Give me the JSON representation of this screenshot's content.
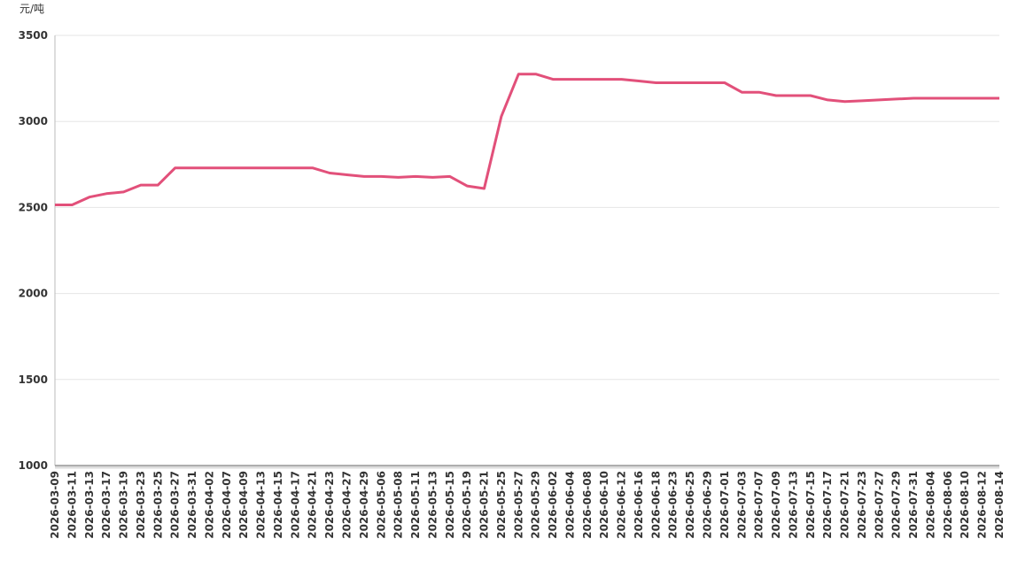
{
  "chart_data": {
    "type": "line",
    "y_label": "元/吨",
    "categories": [
      "2026-03-09",
      "2026-03-11",
      "2026-03-13",
      "2026-03-17",
      "2026-03-19",
      "2026-03-23",
      "2026-03-25",
      "2026-03-27",
      "2026-03-31",
      "2026-04-02",
      "2026-04-07",
      "2026-04-09",
      "2026-04-13",
      "2026-04-15",
      "2026-04-17",
      "2026-04-21",
      "2026-04-23",
      "2026-04-27",
      "2026-04-29",
      "2026-05-06",
      "2026-05-08",
      "2026-05-11",
      "2026-05-13",
      "2026-05-15",
      "2026-05-19",
      "2026-05-21",
      "2026-05-25",
      "2026-05-27",
      "2026-05-29",
      "2026-06-02",
      "2026-06-04",
      "2026-06-08",
      "2026-06-10",
      "2026-06-12",
      "2026-06-16",
      "2026-06-18",
      "2026-06-23",
      "2026-06-25",
      "2026-06-29",
      "2026-07-01",
      "2026-07-03",
      "2026-07-07",
      "2026-07-09",
      "2026-07-13",
      "2026-07-15",
      "2026-07-17",
      "2026-07-21",
      "2026-07-23",
      "2026-07-27",
      "2026-07-29",
      "2026-07-31",
      "2026-08-04",
      "2026-08-06",
      "2026-08-10",
      "2026-08-12",
      "2026-08-14"
    ],
    "values": [
      2515,
      2515,
      2560,
      2580,
      2590,
      2630,
      2630,
      2730,
      2730,
      2730,
      2730,
      2730,
      2730,
      2730,
      2730,
      2730,
      2700,
      2690,
      2680,
      2680,
      2675,
      2680,
      2675,
      2680,
      2625,
      2610,
      3030,
      3275,
      3275,
      3245,
      3245,
      3245,
      3245,
      3245,
      3235,
      3225,
      3225,
      3225,
      3225,
      3225,
      3170,
      3170,
      3150,
      3150,
      3150,
      3125,
      3115,
      3120,
      3125,
      3130,
      3135,
      3135,
      3135,
      3135,
      3135,
      3135
    ],
    "color": "#e2507a",
    "ylim": [
      1000,
      3500
    ],
    "yticks": [
      1000,
      1500,
      2000,
      2500,
      3000,
      3500
    ],
    "grid": true
  }
}
